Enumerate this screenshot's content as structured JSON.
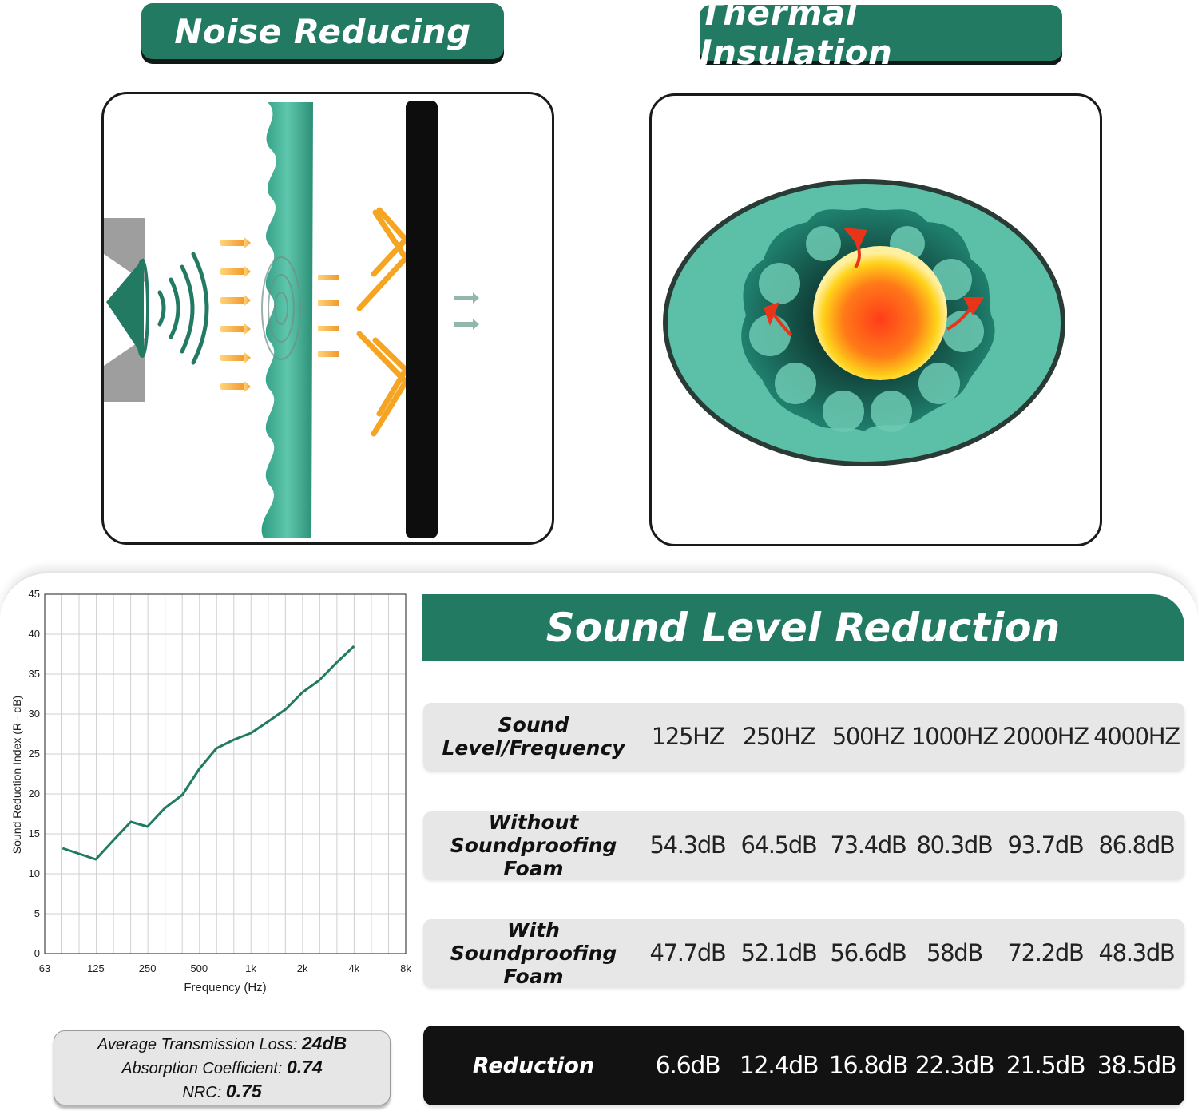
{
  "badges": {
    "noise": "Noise Reducing",
    "thermal": "Thermal Insulation"
  },
  "colors": {
    "brand_green": "#227a62",
    "foam": "#3fae95",
    "dark": "#121212",
    "heat": "#ff3c1a"
  },
  "icons": [
    "speaker-icon",
    "sound-wave-icon",
    "heat-arrow-icon"
  ],
  "table": {
    "title": "Sound Level Reduction",
    "header": {
      "label": "Sound Level/Frequency",
      "cells": [
        "125HZ",
        "250HZ",
        "500HZ",
        "1000HZ",
        "2000HZ",
        "4000HZ"
      ]
    },
    "without": {
      "label_line1": "Without",
      "label_line2": "Soundproofing Foam",
      "cells": [
        "54.3dB",
        "64.5dB",
        "73.4dB",
        "80.3dB",
        "93.7dB",
        "86.8dB"
      ]
    },
    "with": {
      "label_line1": "With",
      "label_line2": "Soundproofing Foam",
      "cells": [
        "47.7dB",
        "52.1dB",
        "56.6dB",
        "58dB",
        "72.2dB",
        "48.3dB"
      ]
    },
    "reduction": {
      "label": "Reduction",
      "cells": [
        "6.6dB",
        "12.4dB",
        "16.8dB",
        "22.3dB",
        "21.5dB",
        "38.5dB"
      ]
    }
  },
  "stats": {
    "avg_label": "Average Transmission Loss:",
    "avg_value": "24dB",
    "abs_label": "Absorption Coefficient:",
    "abs_value": "0.74",
    "nrc_label": "NRC:",
    "nrc_value": "0.75"
  },
  "chart_data": {
    "type": "line",
    "xlabel": "Frequency (Hz)",
    "ylabel": "Sound Reduction Index (R - dB)",
    "x_scale": "log",
    "xlim": [
      63,
      8000
    ],
    "ylim": [
      0,
      45
    ],
    "grid": true,
    "x_ticks": [
      {
        "value": 63,
        "label": "63"
      },
      {
        "value": 125,
        "label": "125"
      },
      {
        "value": 250,
        "label": "250"
      },
      {
        "value": 500,
        "label": "500"
      },
      {
        "value": 1000,
        "label": "1k"
      },
      {
        "value": 2000,
        "label": "2k"
      },
      {
        "value": 4000,
        "label": "4k"
      },
      {
        "value": 8000,
        "label": "8k"
      }
    ],
    "y_ticks": [
      0,
      5,
      10,
      15,
      20,
      25,
      30,
      35,
      40,
      45
    ],
    "series": [
      {
        "color": "#227a62",
        "points": [
          {
            "x": 80,
            "y": 13.2
          },
          {
            "x": 100,
            "y": 12.5
          },
          {
            "x": 125,
            "y": 11.8
          },
          {
            "x": 160,
            "y": 14.3
          },
          {
            "x": 200,
            "y": 16.5
          },
          {
            "x": 250,
            "y": 15.9
          },
          {
            "x": 315,
            "y": 18.2
          },
          {
            "x": 400,
            "y": 19.9
          },
          {
            "x": 500,
            "y": 23.1
          },
          {
            "x": 630,
            "y": 25.7
          },
          {
            "x": 800,
            "y": 26.8
          },
          {
            "x": 1000,
            "y": 27.6
          },
          {
            "x": 1250,
            "y": 29
          },
          {
            "x": 1600,
            "y": 30.6
          },
          {
            "x": 2000,
            "y": 32.7
          },
          {
            "x": 2500,
            "y": 34.2
          },
          {
            "x": 3150,
            "y": 36.4
          },
          {
            "x": 4000,
            "y": 38.5
          }
        ]
      }
    ]
  }
}
